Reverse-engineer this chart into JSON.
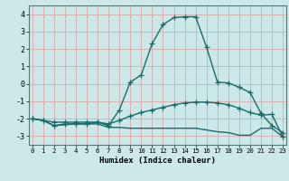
{
  "xlabel": "Humidex (Indice chaleur)",
  "x": [
    0,
    1,
    2,
    3,
    4,
    5,
    6,
    7,
    8,
    9,
    10,
    11,
    12,
    13,
    14,
    15,
    16,
    17,
    18,
    19,
    20,
    21,
    22,
    23
  ],
  "line_peak": [
    -2.0,
    -2.1,
    -2.4,
    -2.3,
    -2.3,
    -2.3,
    -2.2,
    -2.4,
    -1.5,
    0.1,
    0.5,
    2.3,
    3.4,
    3.8,
    3.85,
    3.85,
    2.1,
    0.1,
    0.05,
    -0.2,
    -0.5,
    -1.7,
    -2.4,
    -2.8
  ],
  "line_mid": [
    -2.0,
    -2.1,
    -2.2,
    -2.2,
    -2.2,
    -2.2,
    -2.2,
    -2.3,
    -2.1,
    -1.85,
    -1.65,
    -1.5,
    -1.35,
    -1.2,
    -1.1,
    -1.05,
    -1.05,
    -1.1,
    -1.2,
    -1.4,
    -1.65,
    -1.8,
    -1.75,
    -3.05
  ],
  "line_low": [
    -2.0,
    -2.1,
    -2.4,
    -2.35,
    -2.3,
    -2.3,
    -2.3,
    -2.5,
    -2.5,
    -2.55,
    -2.55,
    -2.55,
    -2.55,
    -2.55,
    -2.55,
    -2.55,
    -2.65,
    -2.75,
    -2.8,
    -2.95,
    -2.95,
    -2.55,
    -2.55,
    -3.05
  ],
  "bg_color": "#cce8e8",
  "grid_color_major": "#d8a8a8",
  "grid_color_minor": "#d8c8c8",
  "line_color": "#1a6b6b",
  "ylim": [
    -3.5,
    4.5
  ],
  "xlim": [
    -0.3,
    23.3
  ],
  "yticks": [
    -3,
    -2,
    -1,
    0,
    1,
    2,
    3,
    4
  ],
  "linewidth": 1.0,
  "marker_size": 4
}
